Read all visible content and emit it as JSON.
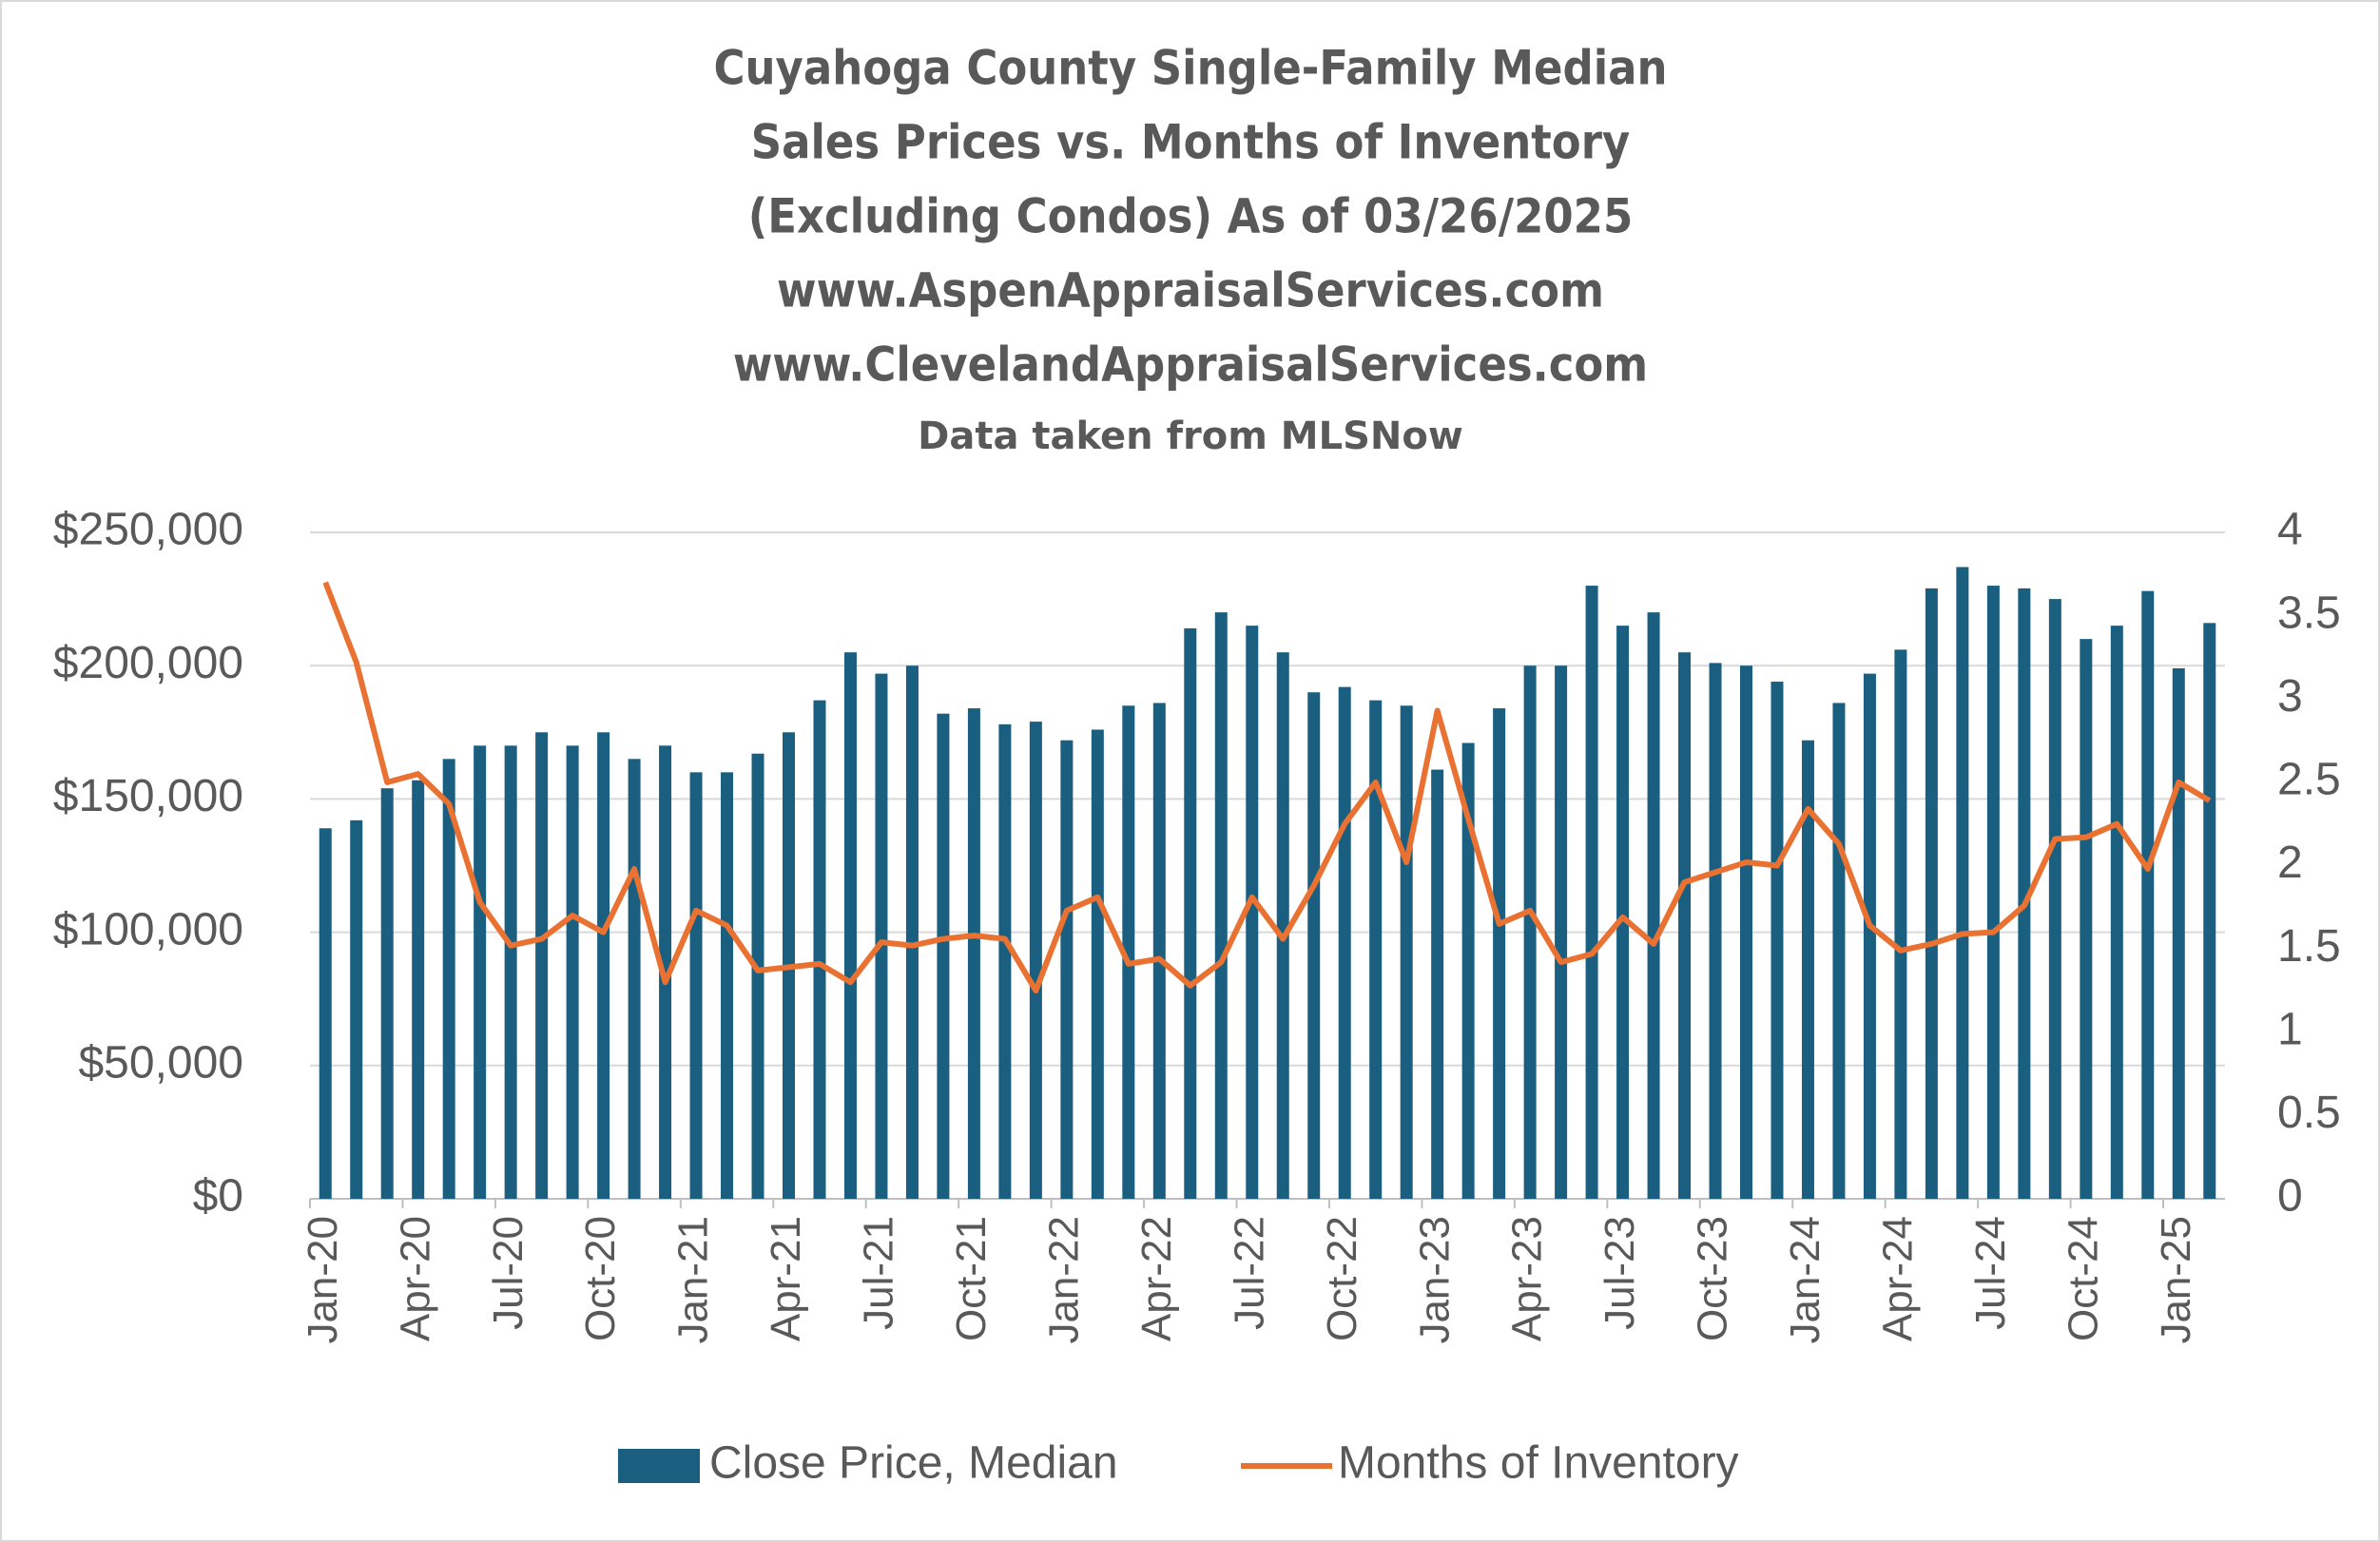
{
  "chart_data": {
    "type": "bar-line",
    "title": [
      "Cuyahoga County Single-Family Median",
      "Sales Prices vs. Months of Inventory",
      "(Excluding Condos) As of 03/26/2025",
      "www.AspenAppraisalServices.com",
      "www.ClevelandAppraisalServices.com"
    ],
    "subtitle": "Data taken from MLSNow",
    "categories": [
      "Jan-20",
      null,
      null,
      "Apr-20",
      null,
      null,
      "Jul-20",
      null,
      null,
      "Oct-20",
      null,
      null,
      "Jan-21",
      null,
      null,
      "Apr-21",
      null,
      null,
      "Jul-21",
      null,
      null,
      "Oct-21",
      null,
      null,
      "Jan-22",
      null,
      null,
      "Apr-22",
      null,
      null,
      "Jul-22",
      null,
      null,
      "Oct-22",
      null,
      null,
      "Jan-23",
      null,
      null,
      "Apr-23",
      null,
      null,
      "Jul-23",
      null,
      null,
      "Oct-23",
      null,
      null,
      "Jan-24",
      null,
      null,
      "Apr-24",
      null,
      null,
      "Jul-24",
      null,
      null,
      "Oct-24",
      null,
      null,
      "Jan-25",
      null
    ],
    "series": [
      {
        "name": "Close Price, Median",
        "type": "bar",
        "color": "#1a5e80",
        "axis": "y",
        "values": [
          139000,
          142000,
          154000,
          157000,
          165000,
          170000,
          170000,
          175000,
          170000,
          175000,
          165000,
          170000,
          160000,
          160000,
          167000,
          175000,
          187000,
          205000,
          197000,
          200000,
          182000,
          184000,
          178000,
          179000,
          172000,
          176000,
          185000,
          186000,
          214000,
          220000,
          215000,
          205000,
          190000,
          192000,
          187000,
          185000,
          161000,
          171000,
          184000,
          200000,
          200000,
          230000,
          215000,
          220000,
          205000,
          201000,
          200000,
          194000,
          172000,
          186000,
          197000,
          206000,
          229000,
          237000,
          230000,
          229000,
          225000,
          210000,
          215000,
          228000,
          199000,
          216000
        ]
      },
      {
        "name": "Months of Inventory",
        "type": "line",
        "color": "#e97132",
        "axis": "y2",
        "values": [
          3.7,
          3.22,
          2.5,
          2.55,
          2.37,
          1.78,
          1.52,
          1.56,
          1.7,
          1.6,
          1.98,
          1.3,
          1.73,
          1.64,
          1.37,
          1.39,
          1.41,
          1.3,
          1.54,
          1.52,
          1.56,
          1.58,
          1.56,
          1.25,
          1.73,
          1.81,
          1.41,
          1.44,
          1.28,
          1.42,
          1.81,
          1.56,
          1.88,
          2.25,
          2.5,
          2.02,
          2.93,
          2.28,
          1.65,
          1.73,
          1.42,
          1.47,
          1.69,
          1.53,
          1.9,
          1.96,
          2.02,
          2.0,
          2.34,
          2.13,
          1.64,
          1.49,
          1.53,
          1.59,
          1.6,
          1.76,
          2.16,
          2.17,
          2.25,
          1.98,
          2.5,
          2.39
        ]
      }
    ],
    "ylim": [
      0,
      250000
    ],
    "yticks": [
      {
        "value": 0,
        "label": "$0"
      },
      {
        "value": 50000,
        "label": "$50,000"
      },
      {
        "value": 100000,
        "label": "$100,000"
      },
      {
        "value": 150000,
        "label": "$150,000"
      },
      {
        "value": 200000,
        "label": "$200,000"
      },
      {
        "value": 250000,
        "label": "$250,000"
      }
    ],
    "y2lim": [
      0,
      4
    ],
    "y2ticks": [
      0,
      0.5,
      1,
      1.5,
      2,
      2.5,
      3,
      3.5,
      4
    ],
    "grid": true,
    "legend": "bottom"
  }
}
